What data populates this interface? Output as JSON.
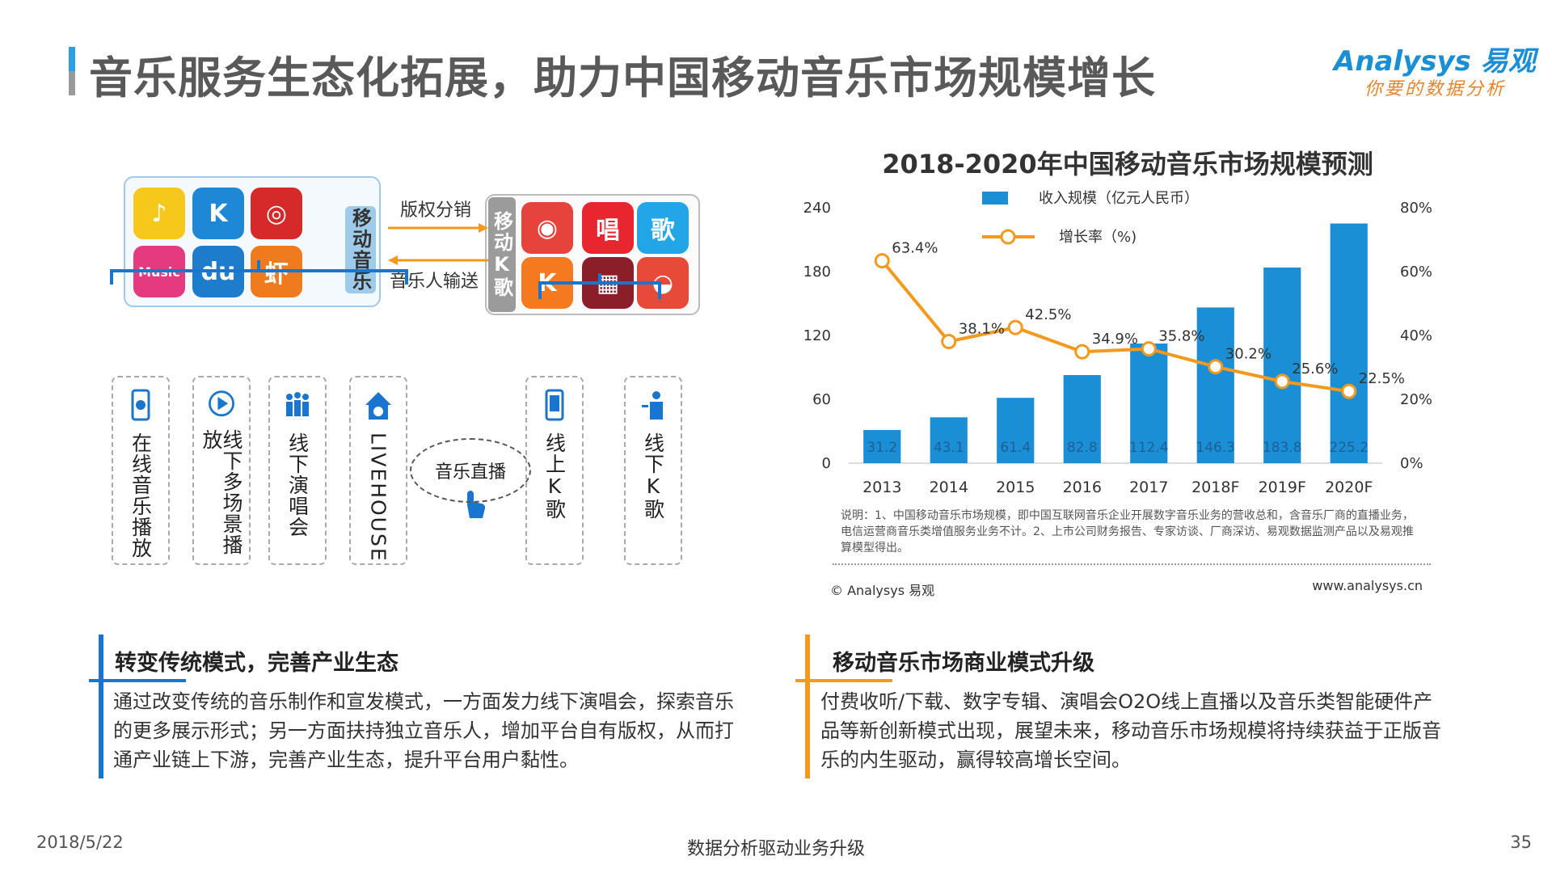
{
  "header": {
    "title": "音乐服务生态化拓展，助力中国移动音乐市场规模增长",
    "logo_main": "Analysys 易观",
    "logo_sub": "你要的数据分析"
  },
  "diagram": {
    "left_group_label": "移动音乐",
    "right_group_label": "移动K歌",
    "arrow_top": "版权分销",
    "arrow_bottom": "音乐人输送",
    "music_apps": [
      {
        "icon": "qq-music-icon",
        "text": "♪",
        "color": "#f6c81b"
      },
      {
        "icon": "kugou-icon",
        "text": "K",
        "color": "#1e88d6"
      },
      {
        "icon": "netease-music-icon",
        "text": "◎",
        "color": "#d62a2a"
      },
      {
        "icon": "qianqian-music-icon",
        "text": "Music",
        "color": "#e53a80"
      },
      {
        "icon": "duomi-icon",
        "text": "du",
        "color": "#1d7ccc"
      },
      {
        "icon": "xiami-icon",
        "text": "虾",
        "color": "#f07b1e"
      }
    ],
    "ktv_apps": [
      {
        "icon": "changba-bird-icon",
        "text": "◉",
        "color": "#e6433d"
      },
      {
        "icon": "chang-app-icon",
        "text": "唱",
        "color": "#e8262f"
      },
      {
        "icon": "ge-app-icon",
        "text": "歌",
        "color": "#23a6e8"
      },
      {
        "icon": "quanmin-k-icon",
        "text": "K",
        "color": "#f4791f"
      },
      {
        "icon": "microphone-app-icon",
        "text": "▦",
        "color": "#8a1f2a"
      },
      {
        "icon": "tiantian-k-icon",
        "text": "◒",
        "color": "#e84a3a"
      }
    ],
    "music_channels": [
      {
        "icon": "phone-play-icon",
        "label": "在线音乐播放"
      },
      {
        "icon": "play-circle-icon",
        "label": "线下多场景播放"
      },
      {
        "icon": "audience-icon",
        "label": "线下演唱会"
      },
      {
        "icon": "livehouse-icon",
        "label": "LIVEHOUSE"
      }
    ],
    "live_label": "音乐直播",
    "ktv_channels": [
      {
        "icon": "phone-icon",
        "label": "线上K歌"
      },
      {
        "icon": "singer-icon",
        "label": "线下K歌"
      }
    ]
  },
  "chart_data": {
    "type": "bar",
    "title": "2018-2020年中国移动音乐市场规模预测",
    "categories": [
      "2013",
      "2014",
      "2015",
      "2016",
      "2017",
      "2018F",
      "2019F",
      "2020F"
    ],
    "series": [
      {
        "name": "收入规模（亿元人民币）",
        "type": "bar",
        "axis": "left",
        "values": [
          31.2,
          43.1,
          61.4,
          82.8,
          112.4,
          146.3,
          183.8,
          225.2
        ],
        "color": "#1a8fd6"
      },
      {
        "name": "增长率（%)",
        "type": "line",
        "axis": "right",
        "values": [
          63.4,
          38.1,
          42.5,
          34.9,
          35.8,
          30.2,
          25.6,
          22.5
        ],
        "color": "#f39a1e"
      }
    ],
    "value_labels": [
      "31.2",
      "43.1",
      "61.4",
      "82.8",
      "112.4",
      "146.3",
      "183.8",
      "225.2"
    ],
    "rate_labels": [
      "63.4%",
      "38.1%",
      "42.5%",
      "34.9%",
      "35.8%",
      "30.2%",
      "25.6%",
      "22.5%"
    ],
    "y_left": {
      "ticks": [
        "0",
        "60",
        "120",
        "180",
        "240"
      ],
      "range": [
        0,
        240
      ]
    },
    "y_right": {
      "ticks": [
        "0%",
        "20%",
        "40%",
        "60%",
        "80%"
      ],
      "range": [
        0,
        80
      ]
    },
    "legend_position": "top",
    "grid": false
  },
  "chart_notes": {
    "note": "说明：1、中国移动音乐市场规模，即中国互联网音乐企业开展数字音乐业务的营收总和，含音乐厂商的直播业务，电信运营商音乐类增值服务业务不计。2、上市公司财务报告、专家访谈、厂商深访、易观数据监测产品以及易观推算模型得出。",
    "copyright": "© Analysys 易观",
    "website": "www.analysys.cn"
  },
  "sections": [
    {
      "title": "转变传统模式，完善产业生态",
      "body": "通过改变传统的音乐制作和宣发模式，一方面发力线下演唱会，探索音乐的更多展示形式；另一方面扶持独立音乐人，增加平台自有版权，从而打通产业链上下游，完善产业生态，提升平台用户黏性。",
      "accent": "#1a75cf"
    },
    {
      "title": "移动音乐市场商业模式升级",
      "body": "付费收听/下载、数字专辑、演唱会O2O线上直播以及音乐类智能硬件产品等新创新模式出现，展望未来，移动音乐市场规模将持续获益于正版音乐的内生驱动，赢得较高增长空间。",
      "accent": "#f39a1e"
    }
  ],
  "footer": {
    "date": "2018/5/22",
    "center": "数据分析驱动业务升级",
    "page": "35"
  }
}
